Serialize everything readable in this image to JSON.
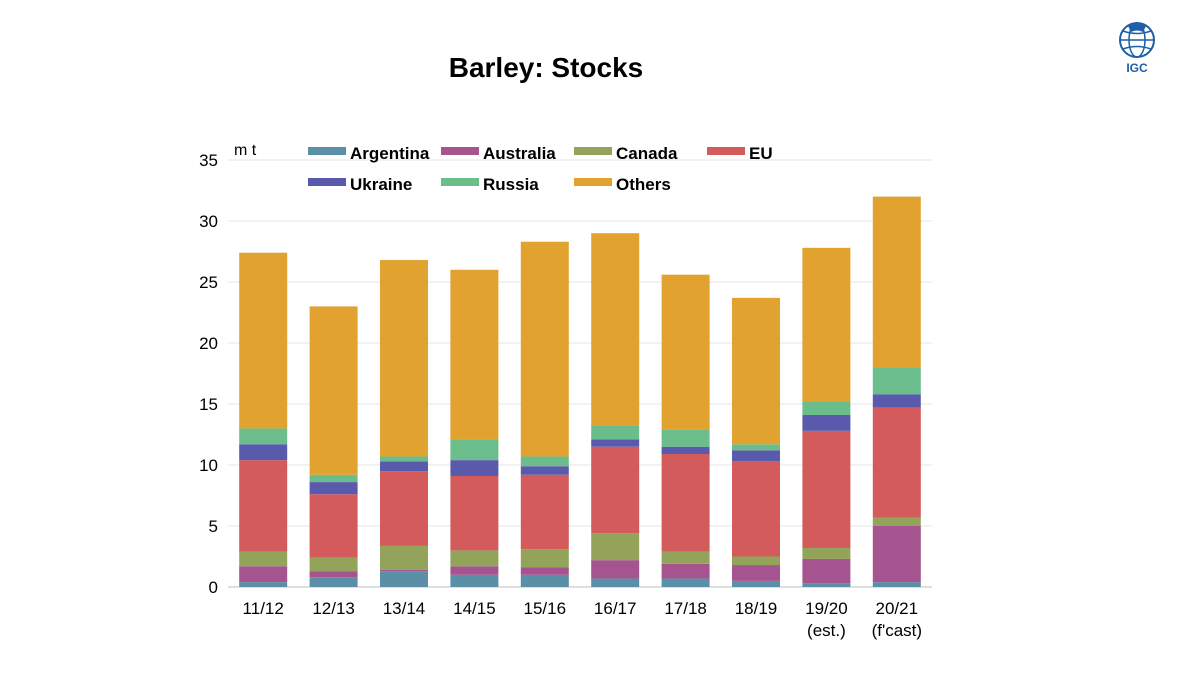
{
  "page": {
    "title": "Barley: Stocks"
  },
  "logo": {
    "text": "IGC",
    "color": "#1f5fa8"
  },
  "chart_data": {
    "type": "bar",
    "stacked": true,
    "unit_label": "m t",
    "categories": [
      "11/12",
      "12/13",
      "13/14",
      "14/15",
      "15/16",
      "16/17",
      "17/18",
      "18/19",
      "19/20\n(est.)",
      "20/21\n(f'cast)"
    ],
    "series": [
      {
        "name": "Argentina",
        "color": "#5b8fa8",
        "values": [
          0.4,
          0.8,
          1.3,
          1.0,
          1.0,
          0.7,
          0.7,
          0.5,
          0.3,
          0.4
        ]
      },
      {
        "name": "Australia",
        "color": "#a5548f",
        "values": [
          1.3,
          0.5,
          0.1,
          0.7,
          0.6,
          1.5,
          1.2,
          1.3,
          2.0,
          4.6
        ]
      },
      {
        "name": "Canada",
        "color": "#93a45a",
        "values": [
          1.2,
          1.1,
          2.0,
          1.3,
          1.5,
          2.2,
          1.0,
          0.7,
          0.9,
          0.7
        ]
      },
      {
        "name": "EU",
        "color": "#d35b5b",
        "values": [
          7.5,
          5.2,
          6.1,
          6.1,
          6.1,
          7.1,
          8.0,
          7.8,
          9.6,
          9.0
        ]
      },
      {
        "name": "Ukraine",
        "color": "#5a5aad",
        "values": [
          1.3,
          1.0,
          0.8,
          1.3,
          0.7,
          0.6,
          0.6,
          0.9,
          1.3,
          1.1
        ]
      },
      {
        "name": "Russia",
        "color": "#6bbd8b",
        "values": [
          1.3,
          0.6,
          0.4,
          1.7,
          0.8,
          1.1,
          1.4,
          0.5,
          1.1,
          2.2
        ]
      },
      {
        "name": "Others",
        "color": "#e2a22f",
        "values": [
          14.4,
          13.8,
          16.1,
          13.9,
          17.6,
          15.8,
          12.7,
          12.0,
          12.6,
          14.0
        ]
      }
    ],
    "ylim": [
      0,
      35
    ],
    "yticks": [
      0,
      5,
      10,
      15,
      20,
      25,
      30,
      35
    ],
    "grid": true,
    "legend_position": "top"
  }
}
